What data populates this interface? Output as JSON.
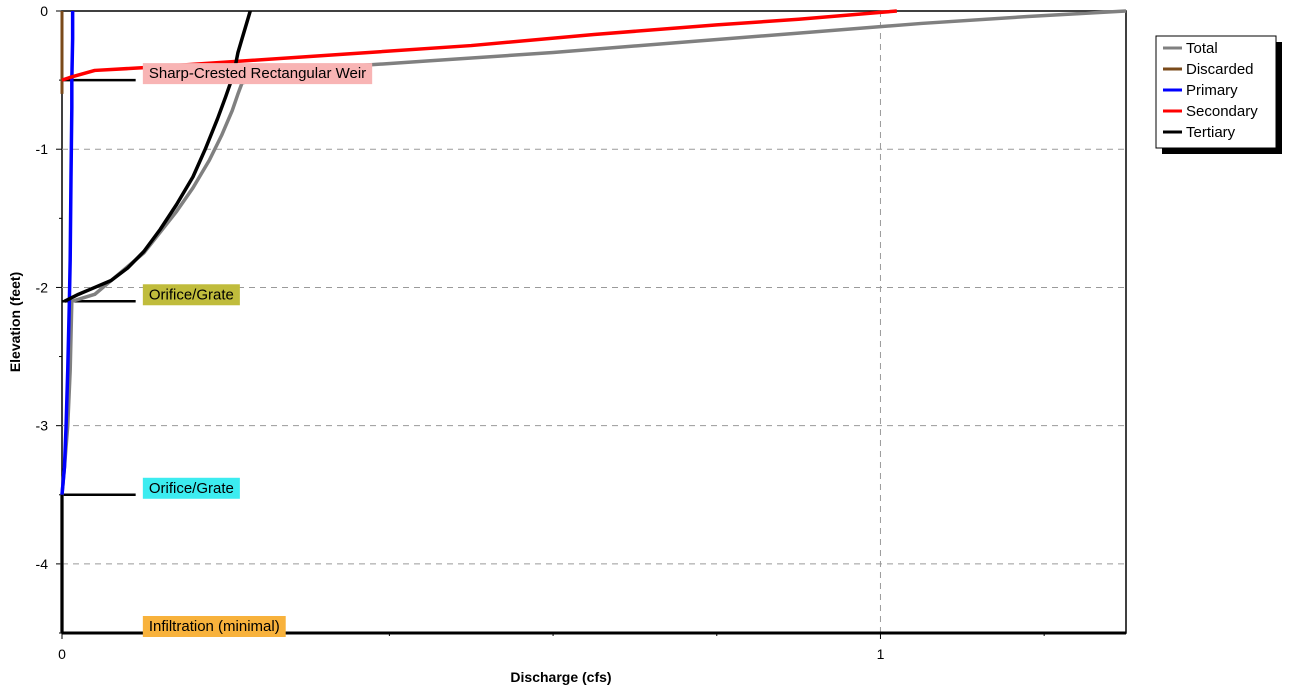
{
  "chart_data": {
    "type": "line",
    "title": "",
    "xlabel": "Discharge  (cfs)",
    "ylabel": "Elevation  (feet)",
    "xlim": [
      0,
      1.3
    ],
    "ylim": [
      -4.5,
      0
    ],
    "x_ticks": [
      {
        "value": 0,
        "label": "0"
      },
      {
        "value": 1,
        "label": "1"
      }
    ],
    "y_ticks": [
      {
        "value": 0,
        "label": "0"
      },
      {
        "value": -1,
        "label": "-1"
      },
      {
        "value": -2,
        "label": "-2"
      },
      {
        "value": -3,
        "label": "-3"
      },
      {
        "value": -4,
        "label": "-4"
      }
    ],
    "grid": true,
    "legend_position": "right",
    "series": [
      {
        "name": "Total",
        "color": "#808080",
        "points": [
          [
            0,
            -4.5
          ],
          [
            0,
            -3.5
          ],
          [
            0.003,
            -3.3
          ],
          [
            0.007,
            -3.0
          ],
          [
            0.01,
            -2.6
          ],
          [
            0.012,
            -2.1
          ],
          [
            0.04,
            -2.05
          ],
          [
            0.06,
            -1.95
          ],
          [
            0.08,
            -1.85
          ],
          [
            0.1,
            -1.75
          ],
          [
            0.12,
            -1.6
          ],
          [
            0.14,
            -1.45
          ],
          [
            0.16,
            -1.28
          ],
          [
            0.18,
            -1.08
          ],
          [
            0.195,
            -0.9
          ],
          [
            0.208,
            -0.72
          ],
          [
            0.215,
            -0.6
          ],
          [
            0.22,
            -0.52
          ],
          [
            0.3,
            -0.42
          ],
          [
            0.45,
            -0.36
          ],
          [
            0.6,
            -0.3
          ],
          [
            0.75,
            -0.23
          ],
          [
            0.9,
            -0.16
          ],
          [
            1.05,
            -0.09
          ],
          [
            1.18,
            -0.04
          ],
          [
            1.3,
            0
          ]
        ]
      },
      {
        "name": "Discarded",
        "color": "#7a4a1a",
        "points": [
          [
            0,
            -0.6
          ],
          [
            0,
            -0.4
          ],
          [
            0,
            -0.2
          ],
          [
            0,
            0
          ]
        ]
      },
      {
        "name": "Primary",
        "color": "#0000ff",
        "points": [
          [
            0,
            -3.5
          ],
          [
            0.003,
            -3.3
          ],
          [
            0.005,
            -3.0
          ],
          [
            0.007,
            -2.6
          ],
          [
            0.009,
            -2.1
          ],
          [
            0.01,
            -1.8
          ],
          [
            0.011,
            -1.2
          ],
          [
            0.012,
            -0.7
          ],
          [
            0.012,
            -0.5
          ],
          [
            0.013,
            -0.2
          ],
          [
            0.013,
            0
          ]
        ]
      },
      {
        "name": "Secondary",
        "color": "#ff0000",
        "points": [
          [
            0,
            -0.5
          ],
          [
            0.01,
            -0.48
          ],
          [
            0.04,
            -0.43
          ],
          [
            0.1,
            -0.41
          ],
          [
            0.2,
            -0.37
          ],
          [
            0.35,
            -0.31
          ],
          [
            0.5,
            -0.25
          ],
          [
            0.65,
            -0.17
          ],
          [
            0.8,
            -0.1
          ],
          [
            0.9,
            -0.06
          ],
          [
            1.0,
            -0.01
          ],
          [
            1.02,
            0
          ]
        ]
      },
      {
        "name": "Tertiary",
        "color": "#000000",
        "points": [
          [
            0.003,
            -2.1
          ],
          [
            0.02,
            -2.05
          ],
          [
            0.04,
            -2.0
          ],
          [
            0.06,
            -1.95
          ],
          [
            0.08,
            -1.86
          ],
          [
            0.1,
            -1.74
          ],
          [
            0.12,
            -1.58
          ],
          [
            0.14,
            -1.4
          ],
          [
            0.16,
            -1.2
          ],
          [
            0.175,
            -1.0
          ],
          [
            0.19,
            -0.78
          ],
          [
            0.2,
            -0.62
          ],
          [
            0.21,
            -0.45
          ],
          [
            0.215,
            -0.3
          ],
          [
            0.22,
            -0.2
          ],
          [
            0.225,
            -0.1
          ],
          [
            0.23,
            0
          ]
        ]
      }
    ],
    "annotations": [
      {
        "label": "Sharp-Crested Rectangular Weir",
        "elevation": -0.5,
        "color": "#f8b4b4"
      },
      {
        "label": "Orifice/Grate",
        "elevation": -2.1,
        "color": "#c0bc3c"
      },
      {
        "label": "Orifice/Grate",
        "elevation": -3.5,
        "color": "#3cecf0"
      },
      {
        "label": "Infiltration (minimal)",
        "elevation": -4.5,
        "color": "#f8b23c"
      }
    ]
  }
}
